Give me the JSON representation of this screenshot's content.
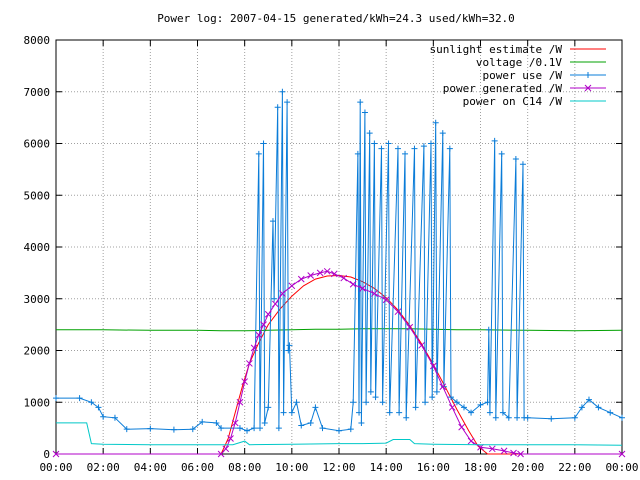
{
  "chart_data": {
    "type": "line",
    "title": "Power log: 2007-04-15 generated/kWh=24.3 used/kWh=32.0",
    "xlabel": "",
    "ylabel": "",
    "x_ticks": [
      "00:00",
      "02:00",
      "04:00",
      "06:00",
      "08:00",
      "10:00",
      "12:00",
      "14:00",
      "16:00",
      "18:00",
      "20:00",
      "22:00",
      "00:00"
    ],
    "y_ticks": [
      0,
      1000,
      2000,
      3000,
      4000,
      5000,
      6000,
      7000,
      8000
    ],
    "xlim_hours": [
      0,
      24
    ],
    "ylim": [
      0,
      8000
    ],
    "grid": true,
    "legend_position": "top-right",
    "series": [
      {
        "name": "sunlight estimate /W",
        "color": "#ff0000",
        "style": "line",
        "points": [
          [
            0,
            0
          ],
          [
            7.0,
            0
          ],
          [
            7.3,
            300
          ],
          [
            7.6,
            800
          ],
          [
            7.9,
            1300
          ],
          [
            8.2,
            1750
          ],
          [
            8.6,
            2150
          ],
          [
            9.0,
            2500
          ],
          [
            9.5,
            2800
          ],
          [
            10.0,
            3050
          ],
          [
            10.5,
            3250
          ],
          [
            11.0,
            3380
          ],
          [
            11.5,
            3440
          ],
          [
            12.0,
            3450
          ],
          [
            12.5,
            3420
          ],
          [
            13.0,
            3330
          ],
          [
            13.5,
            3200
          ],
          [
            14.0,
            3020
          ],
          [
            14.5,
            2780
          ],
          [
            15.0,
            2480
          ],
          [
            15.5,
            2130
          ],
          [
            16.0,
            1730
          ],
          [
            16.5,
            1300
          ],
          [
            17.0,
            860
          ],
          [
            17.5,
            450
          ],
          [
            17.9,
            150
          ],
          [
            18.3,
            0
          ],
          [
            24,
            0
          ]
        ]
      },
      {
        "name": "voltage /0.1V",
        "color": "#00a000",
        "style": "line",
        "points": [
          [
            0,
            2400
          ],
          [
            2,
            2400
          ],
          [
            4,
            2390
          ],
          [
            6,
            2390
          ],
          [
            7,
            2380
          ],
          [
            8,
            2380
          ],
          [
            9,
            2390
          ],
          [
            10,
            2400
          ],
          [
            11,
            2410
          ],
          [
            12,
            2410
          ],
          [
            13,
            2420
          ],
          [
            14,
            2420
          ],
          [
            15,
            2420
          ],
          [
            16,
            2410
          ],
          [
            17,
            2400
          ],
          [
            18,
            2400
          ],
          [
            20,
            2390
          ],
          [
            22,
            2380
          ],
          [
            24,
            2390
          ]
        ]
      },
      {
        "name": "power use /W",
        "color": "#0a7cd8",
        "style": "linepoints",
        "points": [
          [
            0,
            1080
          ],
          [
            1.0,
            1080
          ],
          [
            1.5,
            1000
          ],
          [
            1.8,
            900
          ],
          [
            2.0,
            720
          ],
          [
            2.5,
            700
          ],
          [
            3.0,
            480
          ],
          [
            4.0,
            490
          ],
          [
            5.0,
            470
          ],
          [
            5.8,
            480
          ],
          [
            6.2,
            620
          ],
          [
            6.8,
            600
          ],
          [
            7.0,
            500
          ],
          [
            7.8,
            500
          ],
          [
            8.1,
            450
          ],
          [
            8.4,
            500
          ],
          [
            8.6,
            5800
          ],
          [
            8.65,
            500
          ],
          [
            8.8,
            6000
          ],
          [
            8.85,
            600
          ],
          [
            9.0,
            900
          ],
          [
            9.2,
            4500
          ],
          [
            9.25,
            3000
          ],
          [
            9.4,
            6700
          ],
          [
            9.45,
            500
          ],
          [
            9.6,
            7000
          ],
          [
            9.65,
            800
          ],
          [
            9.8,
            6800
          ],
          [
            9.85,
            2000
          ],
          [
            9.9,
            2100
          ],
          [
            10.0,
            800
          ],
          [
            10.2,
            1000
          ],
          [
            10.4,
            550
          ],
          [
            10.8,
            600
          ],
          [
            11.0,
            900
          ],
          [
            11.3,
            500
          ],
          [
            12.0,
            450
          ],
          [
            12.5,
            480
          ],
          [
            12.6,
            1000
          ],
          [
            12.8,
            5800
          ],
          [
            12.85,
            800
          ],
          [
            12.9,
            6800
          ],
          [
            12.95,
            600
          ],
          [
            13.1,
            6600
          ],
          [
            13.15,
            1000
          ],
          [
            13.3,
            6200
          ],
          [
            13.35,
            1200
          ],
          [
            13.5,
            6000
          ],
          [
            13.55,
            1100
          ],
          [
            13.8,
            5900
          ],
          [
            13.85,
            1000
          ],
          [
            14.1,
            6000
          ],
          [
            14.15,
            800
          ],
          [
            14.5,
            5900
          ],
          [
            14.55,
            800
          ],
          [
            14.8,
            5800
          ],
          [
            14.85,
            700
          ],
          [
            15.2,
            5900
          ],
          [
            15.25,
            900
          ],
          [
            15.6,
            5950
          ],
          [
            15.65,
            1000
          ],
          [
            15.9,
            6000
          ],
          [
            15.95,
            1100
          ],
          [
            16.1,
            6400
          ],
          [
            16.15,
            1200
          ],
          [
            16.4,
            6200
          ],
          [
            16.45,
            1300
          ],
          [
            16.7,
            5900
          ],
          [
            16.75,
            1100
          ],
          [
            17.0,
            1000
          ],
          [
            17.3,
            900
          ],
          [
            17.6,
            800
          ],
          [
            18.0,
            950
          ],
          [
            18.3,
            1000
          ],
          [
            18.35,
            2400
          ],
          [
            18.4,
            800
          ],
          [
            18.6,
            6050
          ],
          [
            18.65,
            700
          ],
          [
            18.9,
            5800
          ],
          [
            18.95,
            800
          ],
          [
            19.2,
            700
          ],
          [
            19.5,
            5700
          ],
          [
            19.55,
            700
          ],
          [
            19.8,
            5600
          ],
          [
            19.85,
            700
          ],
          [
            20.0,
            700
          ],
          [
            21.0,
            680
          ],
          [
            22.0,
            700
          ],
          [
            22.3,
            900
          ],
          [
            22.6,
            1050
          ],
          [
            23.0,
            900
          ],
          [
            23.5,
            800
          ],
          [
            24,
            700
          ]
        ]
      },
      {
        "name": "power generated /W",
        "color": "#b000c8",
        "style": "linepoints",
        "points": [
          [
            0,
            0
          ],
          [
            7.0,
            0
          ],
          [
            7.2,
            100
          ],
          [
            7.4,
            300
          ],
          [
            7.6,
            600
          ],
          [
            7.8,
            1000
          ],
          [
            8.0,
            1400
          ],
          [
            8.2,
            1750
          ],
          [
            8.4,
            2050
          ],
          [
            8.6,
            2300
          ],
          [
            8.8,
            2500
          ],
          [
            9.0,
            2700
          ],
          [
            9.3,
            2900
          ],
          [
            9.6,
            3100
          ],
          [
            10.0,
            3250
          ],
          [
            10.4,
            3380
          ],
          [
            10.8,
            3450
          ],
          [
            11.2,
            3500
          ],
          [
            11.5,
            3530
          ],
          [
            11.8,
            3480
          ],
          [
            12.2,
            3400
          ],
          [
            12.6,
            3280
          ],
          [
            13.0,
            3200
          ],
          [
            13.5,
            3100
          ],
          [
            14.0,
            2980
          ],
          [
            14.5,
            2750
          ],
          [
            15.0,
            2450
          ],
          [
            15.5,
            2100
          ],
          [
            16.0,
            1700
          ],
          [
            16.4,
            1300
          ],
          [
            16.8,
            900
          ],
          [
            17.2,
            520
          ],
          [
            17.6,
            250
          ],
          [
            18.0,
            130
          ],
          [
            18.5,
            100
          ],
          [
            19.0,
            60
          ],
          [
            19.4,
            20
          ],
          [
            19.7,
            0
          ],
          [
            24,
            0
          ]
        ]
      },
      {
        "name": "power on C14 /W",
        "color": "#00c8c8",
        "style": "line",
        "points": [
          [
            0,
            600
          ],
          [
            1.3,
            600
          ],
          [
            1.5,
            200
          ],
          [
            2.0,
            190
          ],
          [
            4.0,
            180
          ],
          [
            6.0,
            180
          ],
          [
            7.5,
            180
          ],
          [
            8.0,
            250
          ],
          [
            8.2,
            180
          ],
          [
            10.0,
            190
          ],
          [
            12.0,
            200
          ],
          [
            13.0,
            200
          ],
          [
            14.0,
            210
          ],
          [
            14.3,
            280
          ],
          [
            15.0,
            280
          ],
          [
            15.2,
            200
          ],
          [
            16.0,
            190
          ],
          [
            18.0,
            180
          ],
          [
            20.0,
            180
          ],
          [
            22.0,
            180
          ],
          [
            24,
            170
          ]
        ]
      }
    ]
  }
}
